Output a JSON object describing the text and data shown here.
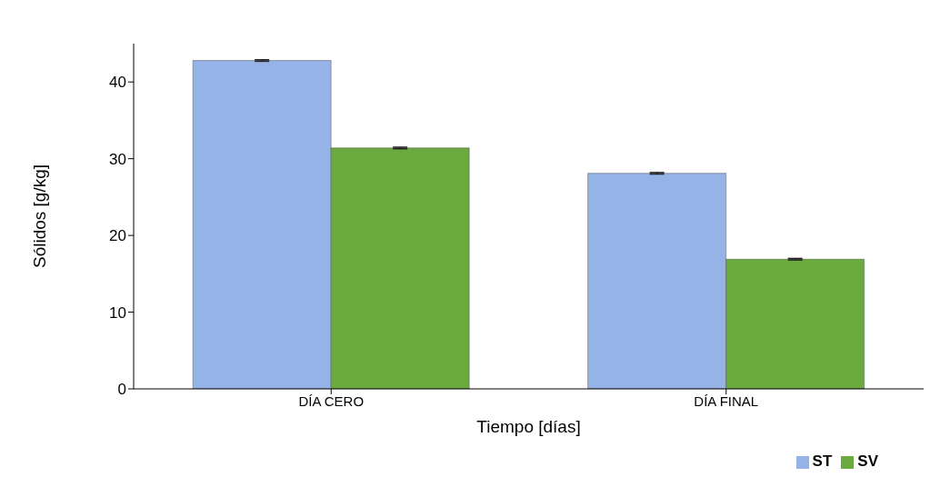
{
  "chart_data": {
    "type": "bar",
    "xlabel": "Tiempo [días]",
    "ylabel": "Sólidos [g/kg]",
    "categories": [
      "DÍA CERO",
      "DÍA FINAL"
    ],
    "series": [
      {
        "name": "ST",
        "color": "#95b3e7",
        "values": [
          42.8,
          28.1
        ],
        "errors": [
          0.1,
          0.1
        ]
      },
      {
        "name": "SV",
        "color": "#6aaa3e",
        "values": [
          31.4,
          16.9
        ],
        "errors": [
          0.1,
          0.1
        ]
      }
    ],
    "ylim": [
      0,
      45
    ],
    "yticks": [
      0,
      10,
      20,
      30,
      40
    ],
    "grid": false,
    "legend": "bottom right"
  }
}
